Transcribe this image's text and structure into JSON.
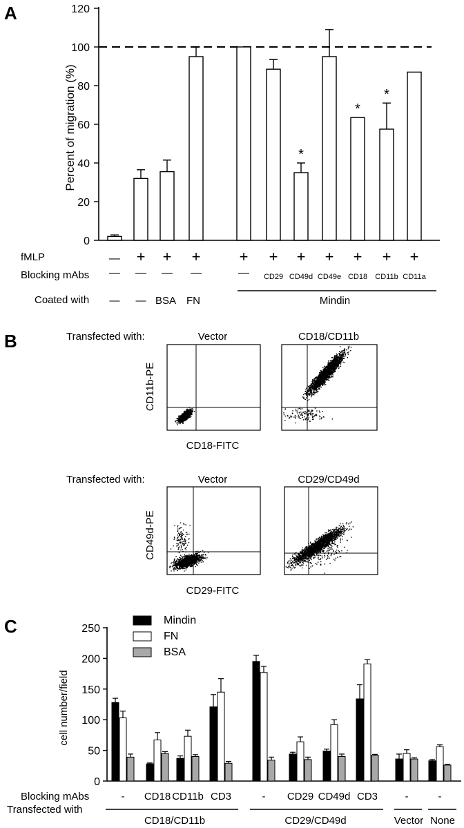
{
  "panels": {
    "a": {
      "letter": "A",
      "chart_data": {
        "type": "bar",
        "ylabel": "Percent of migration (%)",
        "ylim": [
          0,
          120
        ],
        "yticks": [
          "0",
          "20",
          "40",
          "60",
          "80",
          "100",
          "120"
        ],
        "reference_line": 100,
        "values": [
          2,
          32,
          35.5,
          95,
          100,
          88.5,
          35,
          95,
          63.5,
          57.5,
          87
        ],
        "errors": [
          0.8,
          4.5,
          6,
          5,
          0,
          5,
          5,
          14,
          0,
          13.5,
          0
        ],
        "significant": [
          false,
          false,
          false,
          false,
          false,
          false,
          true,
          false,
          true,
          true,
          false
        ],
        "significance_mark": "*"
      },
      "rows": {
        "fmlp": {
          "label": "fMLP",
          "values": [
            "—",
            "+",
            "+",
            "+",
            "+",
            "+",
            "+",
            "+",
            "+",
            "+",
            "+"
          ]
        },
        "blocking": {
          "label": "Blocking mAbs",
          "values": [
            "—",
            "—",
            "—",
            "—",
            "—",
            "CD29",
            "CD49d",
            "CD49e",
            "CD18",
            "CD11b",
            "CD11a"
          ]
        },
        "coated": {
          "label": "Coated with",
          "values": [
            "—",
            "—",
            "BSA",
            "FN"
          ],
          "group": "Mindin"
        }
      }
    },
    "b": {
      "letter": "B",
      "row1": {
        "transfected_label": "Transfected with:",
        "left_title": "Vector",
        "right_title": "CD18/CD11b",
        "ylabel": "CD11b-PE",
        "xlabel": "CD18-FITC"
      },
      "row2": {
        "transfected_label": "Transfected with:",
        "left_title": "Vector",
        "right_title": "CD29/CD49d",
        "ylabel": "CD49d-PE",
        "xlabel": "CD29-FITC"
      }
    },
    "c": {
      "letter": "C",
      "chart_data": {
        "type": "bar",
        "ylabel": "cell number/field",
        "ylim": [
          0,
          250
        ],
        "yticks": [
          "0",
          "50",
          "100",
          "150",
          "200",
          "250"
        ],
        "series": [
          {
            "name": "Mindin",
            "color": "#000000",
            "values": [
              128,
              28,
              37,
              121,
              195,
              44,
              49,
              134,
              36,
              33
            ],
            "errors": [
              7,
              1.5,
              4,
              20,
              10,
              3,
              3,
              23,
              8,
              2
            ]
          },
          {
            "name": "FN",
            "color": "#ffffff",
            "values": [
              103,
              67,
              73,
              145,
              177,
              64,
              92,
              191,
              45,
              56
            ],
            "errors": [
              11,
              12,
              10,
              22,
              10,
              8,
              8,
              7,
              6,
              3
            ]
          },
          {
            "name": "BSA",
            "color": "#a8a8a8",
            "values": [
              39,
              45,
              40,
              29,
              34,
              35,
              40,
              42,
              36,
              26
            ],
            "errors": [
              5,
              3,
              3,
              3,
              5,
              4,
              4,
              1.5,
              2,
              1.5
            ]
          }
        ],
        "blocking_label": "Blocking mAbs",
        "blocking": [
          "-",
          "CD18",
          "CD11b",
          "CD3",
          "-",
          "CD29",
          "CD49d",
          "CD3",
          "-",
          "-"
        ],
        "transfected_label": "Transfected with",
        "transfected_groups": [
          "CD18/CD11b",
          "CD29/CD49d",
          "Vector",
          "None"
        ]
      }
    }
  }
}
